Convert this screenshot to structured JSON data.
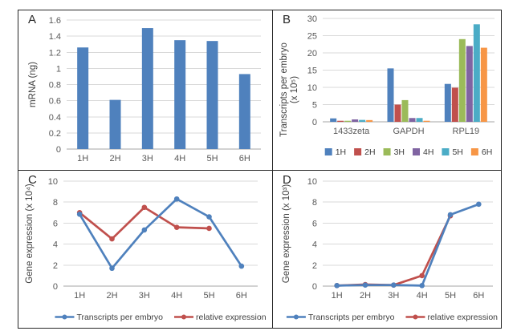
{
  "figure": {
    "border_color": "#262626",
    "background": "#ffffff",
    "grid_color": "#D9D9D9",
    "axis_color": "#A6A6A6"
  },
  "chart_data": [
    {
      "panel": "A",
      "type": "bar",
      "categories": [
        "1H",
        "2H",
        "3H",
        "4H",
        "5H",
        "6H"
      ],
      "values": [
        1.26,
        0.61,
        1.5,
        1.35,
        1.34,
        0.93
      ],
      "bar_color": "#4F81BD",
      "title": "",
      "xlabel": "",
      "ylabel": "mRNA (ng)",
      "ylim": [
        0,
        1.6
      ],
      "ytick_step": 0.2,
      "grid": true
    },
    {
      "panel": "B",
      "type": "bar",
      "categories": [
        "1433zeta",
        "GAPDH",
        "RPL19"
      ],
      "series": [
        {
          "name": "1H",
          "color": "#4F81BD",
          "values": [
            1.0,
            15.5,
            11.0
          ]
        },
        {
          "name": "2H",
          "color": "#C0504D",
          "values": [
            0.3,
            5.0,
            9.9
          ]
        },
        {
          "name": "3H",
          "color": "#9BBB59",
          "values": [
            0.3,
            6.3,
            24.0
          ]
        },
        {
          "name": "4H",
          "color": "#8064A2",
          "values": [
            0.7,
            1.1,
            22.0
          ]
        },
        {
          "name": "5H",
          "color": "#4BACC6",
          "values": [
            0.55,
            1.1,
            28.3
          ]
        },
        {
          "name": "6H",
          "color": "#F79646",
          "values": [
            0.5,
            0.3,
            21.5
          ]
        }
      ],
      "title": "",
      "xlabel": "",
      "ylabel": "Transcripts per embryo",
      "ylabel2": "(x 10⁵)",
      "ylim": [
        0,
        30
      ],
      "ytick_step": 5,
      "grid": true,
      "legend_position": "bottom"
    },
    {
      "panel": "C",
      "type": "line",
      "categories": [
        "1H",
        "2H",
        "3H",
        "4H",
        "5H",
        "6H"
      ],
      "series": [
        {
          "name": "Transcripts per embryo",
          "color": "#4F81BD",
          "values": [
            6.85,
            1.7,
            5.35,
            8.3,
            6.6,
            1.9
          ]
        },
        {
          "name": "relative expression",
          "color": "#C0504D",
          "values": [
            7.0,
            4.5,
            7.5,
            5.6,
            5.5,
            null
          ]
        }
      ],
      "title": "",
      "xlabel": "",
      "ylabel": "Gene expression (x 10⁴)",
      "ylim": [
        0,
        10
      ],
      "ytick_step": 2,
      "grid": true,
      "legend_position": "bottom"
    },
    {
      "panel": "D",
      "type": "line",
      "categories": [
        "1H",
        "2H",
        "3H",
        "4H",
        "5H",
        "6H"
      ],
      "series": [
        {
          "name": "Transcripts per embryo",
          "color": "#4F81BD",
          "values": [
            0.05,
            0.1,
            0.1,
            0.05,
            6.8,
            7.8
          ]
        },
        {
          "name": "relative expression",
          "color": "#C0504D",
          "values": [
            0.05,
            0.15,
            0.1,
            1.0,
            6.7,
            null
          ]
        }
      ],
      "title": "",
      "xlabel": "",
      "ylabel": "Gene expression (x 10³)",
      "ylim": [
        0,
        10
      ],
      "ytick_step": 2,
      "grid": true,
      "legend_position": "bottom"
    }
  ]
}
